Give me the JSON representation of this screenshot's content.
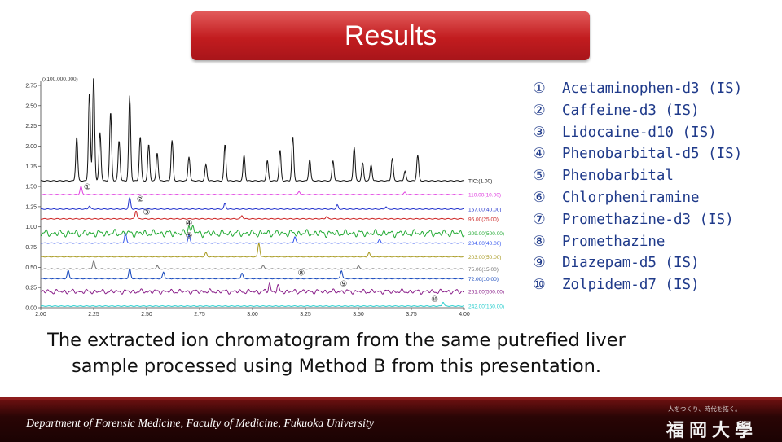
{
  "title": "Results",
  "chart_data": {
    "type": "line",
    "multiplier_label": "(x100,000,000)",
    "xlim": [
      2.0,
      4.0
    ],
    "ylim": [
      0.0,
      2.8
    ],
    "x_ticks": [
      "2.00",
      "2.25",
      "2.50",
      "2.75",
      "3.00",
      "3.25",
      "3.50",
      "3.75",
      "4.00"
    ],
    "y_ticks": [
      "0.00",
      "0.25",
      "0.50",
      "0.75",
      "1.00",
      "1.25",
      "1.50",
      "1.75",
      "2.00",
      "2.25",
      "2.50",
      "2.75"
    ],
    "series": [
      {
        "name": "TIC:(1.00)",
        "color": "#111111",
        "baseline": 1.57,
        "peaks": [
          [
            2.17,
            0.55
          ],
          [
            2.23,
            1.1
          ],
          [
            2.25,
            1.3
          ],
          [
            2.28,
            0.6
          ],
          [
            2.33,
            0.85
          ],
          [
            2.37,
            0.5
          ],
          [
            2.42,
            1.05
          ],
          [
            2.47,
            0.55
          ],
          [
            2.51,
            0.45
          ],
          [
            2.55,
            0.35
          ],
          [
            2.62,
            0.5
          ],
          [
            2.7,
            0.3
          ],
          [
            2.78,
            0.2
          ],
          [
            2.87,
            0.45
          ],
          [
            2.96,
            0.32
          ],
          [
            3.07,
            0.25
          ],
          [
            3.13,
            0.38
          ],
          [
            3.19,
            0.55
          ],
          [
            3.27,
            0.27
          ],
          [
            3.38,
            0.25
          ],
          [
            3.48,
            0.42
          ],
          [
            3.52,
            0.22
          ],
          [
            3.56,
            0.2
          ],
          [
            3.66,
            0.28
          ],
          [
            3.72,
            0.12
          ],
          [
            3.78,
            0.32
          ]
        ]
      },
      {
        "name": "110.00(10.00)",
        "color": "#e040e0",
        "baseline": 1.4,
        "peaks": [
          [
            2.19,
            0.1
          ],
          [
            3.22,
            0.04
          ],
          [
            3.72,
            0.03
          ]
        ]
      },
      {
        "name": "167.00(40.00)",
        "color": "#2233cc",
        "baseline": 1.22,
        "peaks": [
          [
            2.23,
            0.04
          ],
          [
            2.42,
            0.14
          ],
          [
            2.87,
            0.07
          ],
          [
            3.4,
            0.05
          ],
          [
            3.63,
            0.03
          ]
        ]
      },
      {
        "name": "96.00(25.00)",
        "color": "#cc2222",
        "baseline": 1.1,
        "peaks": [
          [
            2.45,
            0.1
          ],
          [
            2.95,
            0.04
          ],
          [
            3.35,
            0.03
          ]
        ]
      },
      {
        "name": "209.00(500.00)",
        "color": "#22aa33",
        "baseline": 0.92,
        "noise": 0.045,
        "peaks": [
          [
            2.7,
            0.12
          ],
          [
            2.72,
            0.09
          ]
        ]
      },
      {
        "name": "204.00(40.00)",
        "color": "#3355ee",
        "baseline": 0.8,
        "peaks": [
          [
            2.4,
            0.12
          ],
          [
            2.7,
            0.1
          ],
          [
            3.2,
            0.08
          ],
          [
            3.6,
            0.04
          ]
        ]
      },
      {
        "name": "203.00(50.00)",
        "color": "#a89a20",
        "baseline": 0.63,
        "peaks": [
          [
            2.78,
            0.05
          ],
          [
            3.03,
            0.17
          ],
          [
            3.55,
            0.05
          ]
        ]
      },
      {
        "name": "75.00(15.00)",
        "color": "#707070",
        "baseline": 0.48,
        "peaks": [
          [
            2.25,
            0.1
          ],
          [
            2.55,
            0.04
          ],
          [
            3.05,
            0.05
          ],
          [
            3.5,
            0.04
          ]
        ]
      },
      {
        "name": "72.00(10.00)",
        "color": "#1144bb",
        "baseline": 0.36,
        "peaks": [
          [
            2.13,
            0.1
          ],
          [
            2.42,
            0.12
          ],
          [
            2.58,
            0.08
          ],
          [
            2.95,
            0.07
          ],
          [
            3.42,
            0.1
          ]
        ]
      },
      {
        "name": "261.00(500.00)",
        "color": "#8a1f8a",
        "baseline": 0.2,
        "noise": 0.03,
        "peaks": [
          [
            3.08,
            0.1
          ],
          [
            3.12,
            0.06
          ]
        ]
      },
      {
        "name": "242.00(150.00)",
        "color": "#22cccc",
        "baseline": 0.02,
        "peaks": [
          [
            3.9,
            0.05
          ]
        ]
      }
    ],
    "peak_markers": [
      {
        "label": "①",
        "x": 2.22,
        "y": 1.46
      },
      {
        "label": "②",
        "x": 2.47,
        "y": 1.31
      },
      {
        "label": "③",
        "x": 2.5,
        "y": 1.15
      },
      {
        "label": "④",
        "x": 2.7,
        "y": 1.01
      },
      {
        "label": "⑤",
        "x": 2.7,
        "y": 0.86
      },
      {
        "label": "⑧",
        "x": 3.23,
        "y": 0.4
      },
      {
        "label": "⑨",
        "x": 3.43,
        "y": 0.26
      },
      {
        "label": "⑩",
        "x": 3.86,
        "y": 0.07
      }
    ]
  },
  "legend": [
    {
      "num": "①",
      "label": "Acetaminophen-d3 (IS)"
    },
    {
      "num": "②",
      "label": "Caffeine-d3 (IS)"
    },
    {
      "num": "③",
      "label": "Lidocaine-d10 (IS)"
    },
    {
      "num": "④",
      "label": "Phenobarbital-d5 (IS)"
    },
    {
      "num": "⑤",
      "label": "Phenobarbital"
    },
    {
      "num": "⑥",
      "label": "Chlorpheniramine"
    },
    {
      "num": "⑦",
      "label": "Promethazine-d3 (IS)"
    },
    {
      "num": "⑧",
      "label": "Promethazine"
    },
    {
      "num": "⑨",
      "label": "Diazepam-d5 (IS)"
    },
    {
      "num": "⑩",
      "label": "Zolpidem-d7 (IS)"
    }
  ],
  "caption": "The extracted ion chromatogram from the same putrefied liver sample processed using Method B from this presentation.",
  "footer": {
    "department": "Department of  Forensic Medicine, Faculty of Medicine, Fukuoka University",
    "slogan": "人をつくり、時代を拓く。",
    "logo": "福岡大學"
  }
}
